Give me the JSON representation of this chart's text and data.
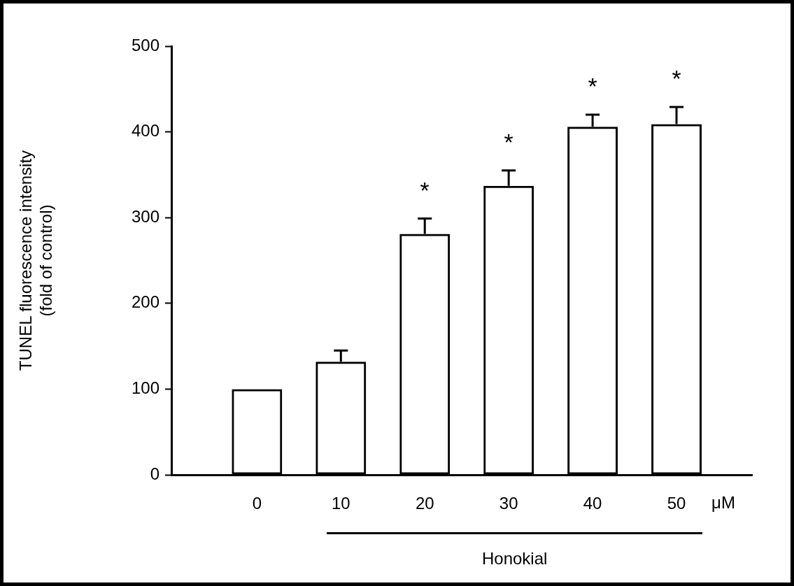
{
  "chart_data": {
    "type": "bar",
    "ylabel": "TUNEL fluorescence intensity\n(fold of control)",
    "xlabel": "μM",
    "categories": [
      "0",
      "10",
      "20",
      "30",
      "40",
      "50"
    ],
    "values": [
      100,
      132,
      281,
      337,
      406,
      409
    ],
    "errors": [
      null,
      [
        132,
        145
      ],
      [
        281,
        299
      ],
      [
        337,
        355
      ],
      [
        406,
        420
      ],
      [
        409,
        429
      ]
    ],
    "color": "#000000",
    "ylim": [
      0,
      500
    ],
    "yticks": [
      0,
      100,
      200,
      300,
      400,
      500
    ],
    "grid": false,
    "legend": false,
    "annotations": [
      {
        "text": "*",
        "x": "20",
        "y": 299
      },
      {
        "text": "*",
        "x": "30",
        "y": 355
      },
      {
        "text": "*",
        "x": "40",
        "y": 420
      },
      {
        "text": "*",
        "x": "50",
        "y": 429
      },
      "Honokial"
    ]
  }
}
